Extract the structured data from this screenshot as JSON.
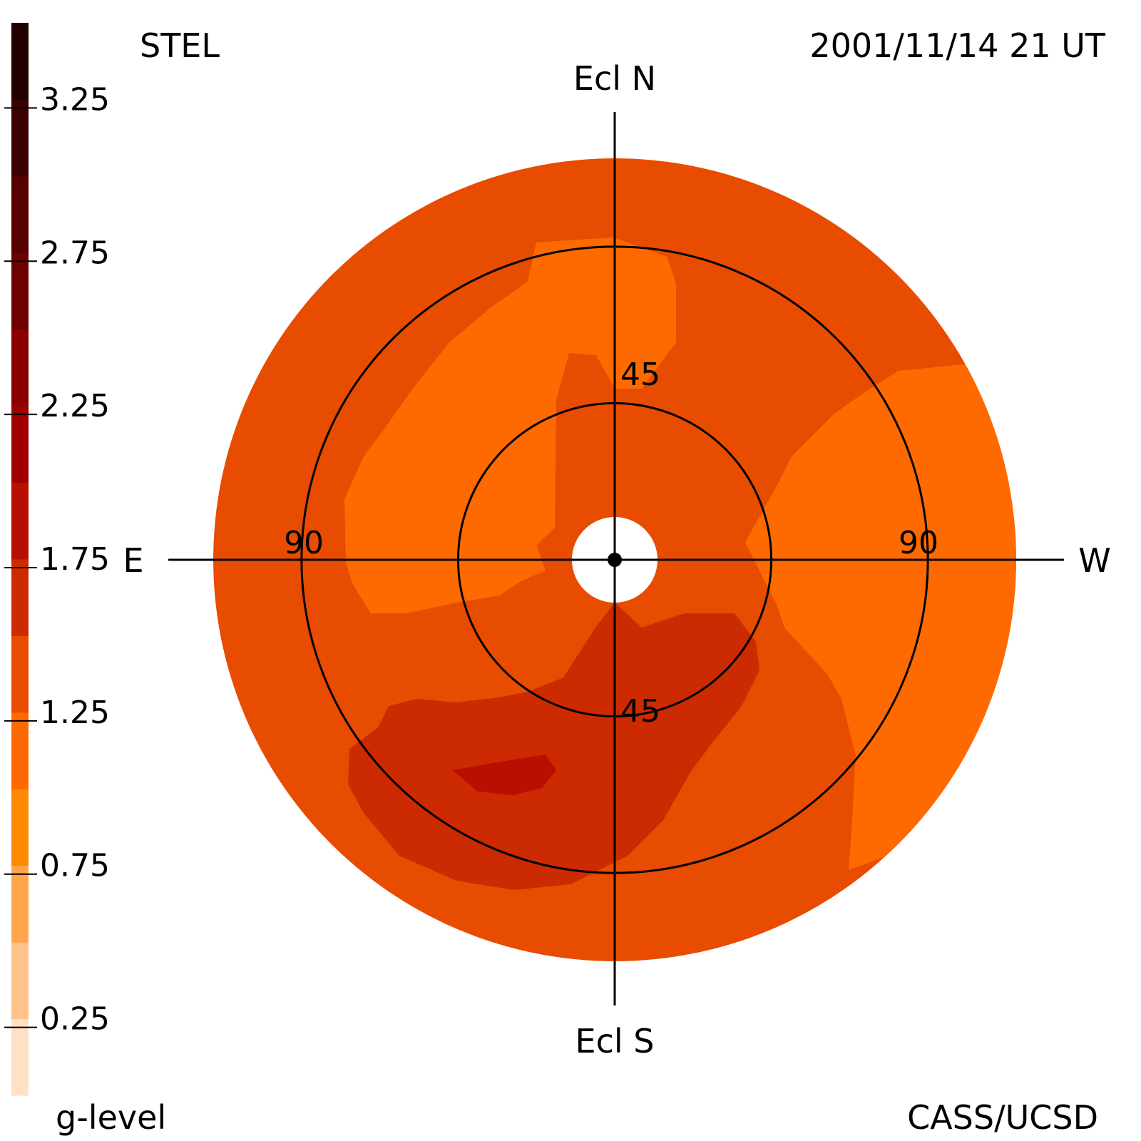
{
  "chart_data": {
    "type": "heatmap",
    "projection": "polar sky map (elongation from Sun)",
    "title_left": "STEL",
    "title_right": "2001/11/14 21 UT",
    "credit": "CASS/UCSD",
    "colorbar": {
      "label": "g-level",
      "tick_labels": [
        "3.25",
        "2.75",
        "2.25",
        "1.75",
        "1.25",
        "0.75",
        "0.25"
      ],
      "tick_values": [
        3.25,
        2.75,
        2.25,
        1.75,
        1.25,
        0.75,
        0.25
      ],
      "range": [
        0.0,
        3.5
      ],
      "levels": [
        {
          "value": 0.0,
          "color": "#ffe2c6"
        },
        {
          "value": 0.25,
          "color": "#ffc28a"
        },
        {
          "value": 0.5,
          "color": "#ffa64d"
        },
        {
          "value": 0.75,
          "color": "#ff8a00"
        },
        {
          "value": 1.0,
          "color": "#ff6a00"
        },
        {
          "value": 1.25,
          "color": "#e84c00"
        },
        {
          "value": 1.5,
          "color": "#cc2a00"
        },
        {
          "value": 1.75,
          "color": "#b81000"
        },
        {
          "value": 2.0,
          "color": "#a00000"
        },
        {
          "value": 2.25,
          "color": "#8a0000"
        },
        {
          "value": 2.5,
          "color": "#6e0000"
        },
        {
          "value": 2.75,
          "color": "#560000"
        },
        {
          "value": 3.0,
          "color": "#3c0000"
        },
        {
          "value": 3.25,
          "color": "#200000"
        }
      ]
    },
    "axes": {
      "north": "Ecl N",
      "south": "Ecl S",
      "east": "E",
      "west": "W"
    },
    "rings": [
      {
        "elongation": 45,
        "labels": [
          "45",
          "45"
        ]
      },
      {
        "elongation": 90,
        "labels": [
          "90",
          "90"
        ]
      }
    ],
    "max_elongation": 120,
    "grid": true,
    "regions": [
      {
        "name": "background",
        "g_level": 1.25,
        "color": "#e84c00"
      },
      {
        "name": "north-central enhancement",
        "g_level": 1.0,
        "color": "#ff6a00"
      },
      {
        "name": "west enhancement",
        "g_level": 1.0,
        "color": "#ff6a00"
      },
      {
        "name": "south-east enhancement",
        "g_level": 1.5,
        "color": "#cc2a00"
      },
      {
        "name": "south-east peak",
        "g_level": 1.75,
        "color": "#b81000"
      }
    ]
  }
}
